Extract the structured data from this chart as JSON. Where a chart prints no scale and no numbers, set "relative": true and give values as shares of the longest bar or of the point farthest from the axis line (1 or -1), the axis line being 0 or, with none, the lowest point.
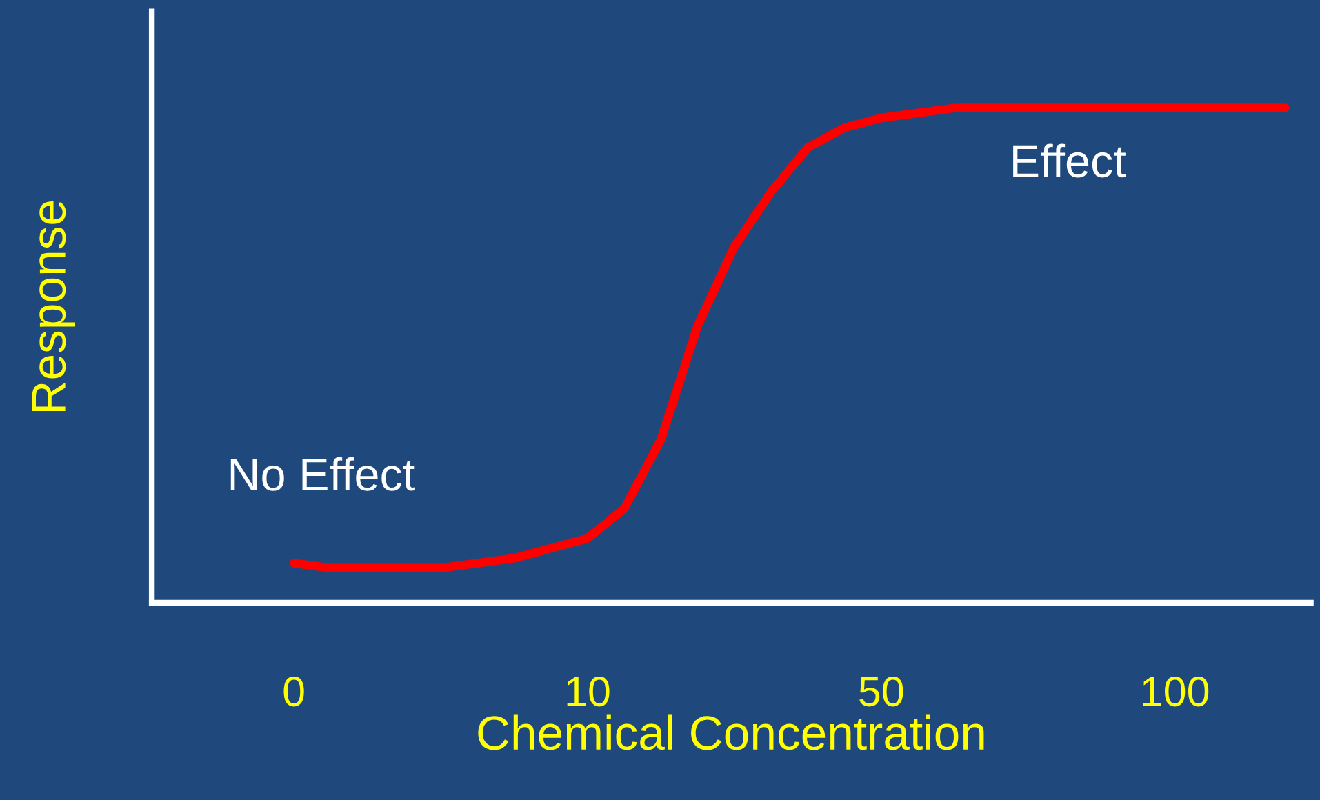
{
  "chart_data": {
    "type": "line",
    "relative": true,
    "xlabel": "Chemical Concentration",
    "ylabel": "Response",
    "categories": [
      "0",
      null,
      null,
      null,
      null,
      null,
      null,
      null,
      "10",
      null,
      null,
      null,
      null,
      null,
      null,
      null,
      "50",
      null,
      null,
      null,
      null,
      null,
      null,
      null,
      "100",
      null,
      null,
      null
    ],
    "series": [
      {
        "color": "#ff0000",
        "values": [
          0.08,
          0.07,
          0.07,
          0.07,
          0.07,
          0.08,
          0.09,
          0.11,
          0.13,
          0.19,
          0.33,
          0.56,
          0.72,
          0.83,
          0.92,
          0.96,
          0.98,
          0.99,
          1,
          1,
          1,
          1,
          1,
          1,
          1,
          1,
          1,
          1
        ]
      }
    ],
    "annotations": [
      "No Effect",
      "Effect"
    ],
    "grid": false,
    "legend": false,
    "marker": "none",
    "line_style": "solid"
  }
}
